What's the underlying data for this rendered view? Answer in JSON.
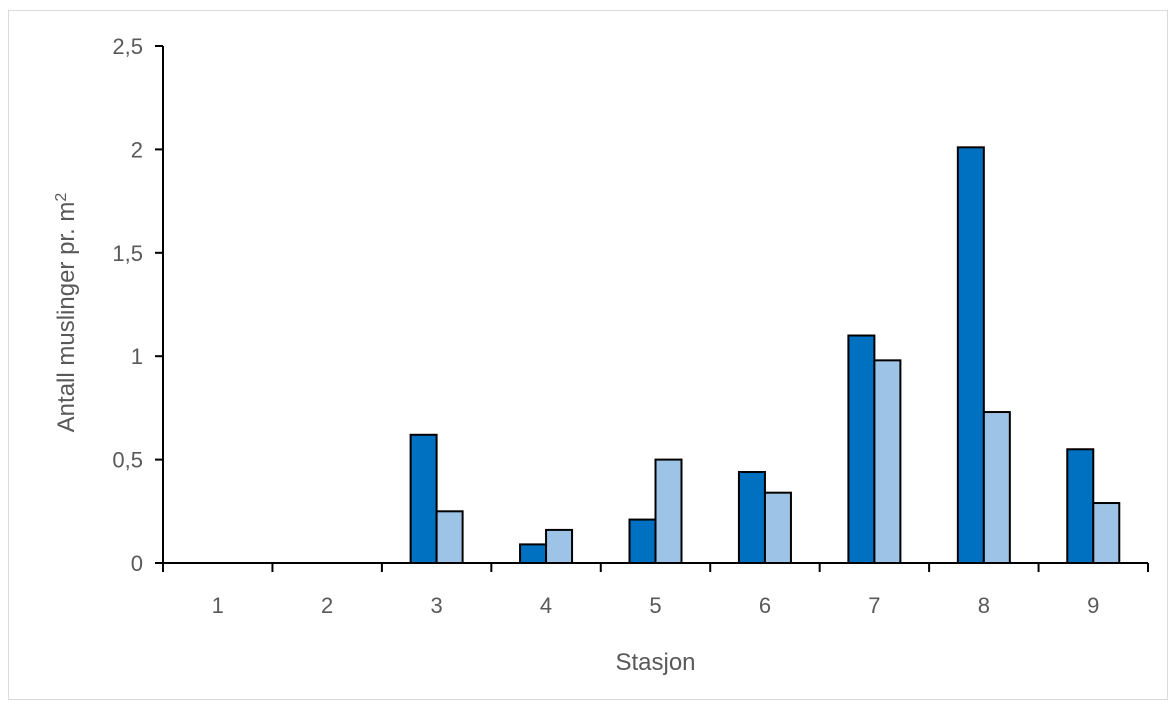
{
  "chart_data": {
    "type": "bar",
    "categories": [
      "1",
      "2",
      "3",
      "4",
      "5",
      "6",
      "7",
      "8",
      "9"
    ],
    "series": [
      {
        "color": "#0070C0",
        "values": [
          0,
          0,
          0.62,
          0.09,
          0.21,
          0.44,
          1.1,
          2.01,
          0.55
        ]
      },
      {
        "color": "#9DC3E6",
        "values": [
          0,
          0,
          0.25,
          0.16,
          0.5,
          0.34,
          0.98,
          0.73,
          0.29
        ]
      }
    ],
    "title": "",
    "xlabel": "Stasjon",
    "ylabel": "Antall muslinger pr. m",
    "ylabel_superscript": "2",
    "ylim": [
      0,
      2.5
    ],
    "yticks": [
      "0",
      "0,5",
      "1",
      "1,5",
      "2",
      "2,5"
    ],
    "ytick_values": [
      0,
      0.5,
      1,
      1.5,
      2,
      2.5
    ],
    "grid": false,
    "legend": "none"
  }
}
